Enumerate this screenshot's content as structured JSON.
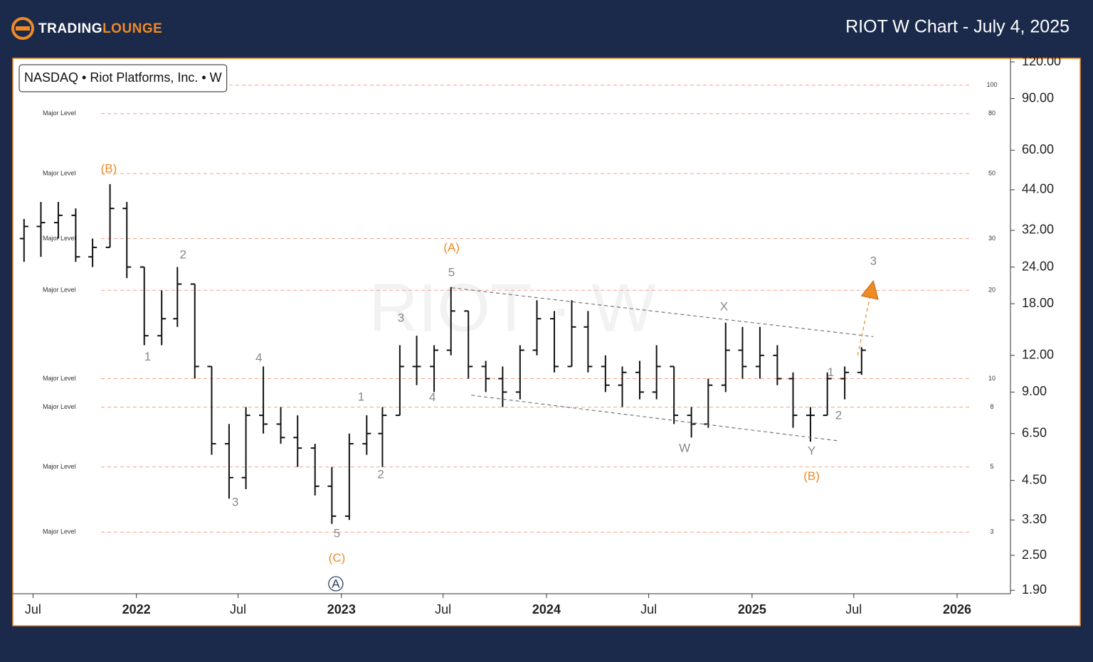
{
  "header": {
    "brand": [
      "TRADING",
      "LOUNGE"
    ],
    "title": "RIOT W Chart - July 4, 2025"
  },
  "chart_data": {
    "type": "ohlc",
    "info": "NASDAQ • Riot Platforms, Inc. • W",
    "watermark": "RIOT · W",
    "log_scale": true,
    "ylim": [
      1.85,
      123.4
    ],
    "yticks": [
      {
        "value": 120,
        "label": "120.00"
      },
      {
        "value": 90,
        "label": "90.00"
      },
      {
        "value": 60,
        "label": "60.00"
      },
      {
        "value": 44,
        "label": "44.00"
      },
      {
        "value": 32,
        "label": "32.00"
      },
      {
        "value": 24,
        "label": "24.00"
      },
      {
        "value": 18,
        "label": "18.00"
      },
      {
        "value": 12,
        "label": "12.00"
      },
      {
        "value": 9,
        "label": "9.00"
      },
      {
        "value": 6.5,
        "label": "6.50"
      },
      {
        "value": 4.5,
        "label": "4.50"
      },
      {
        "value": 3.3,
        "label": "3.30"
      },
      {
        "value": 2.5,
        "label": "2.50"
      },
      {
        "value": 1.9,
        "label": "1.90"
      }
    ],
    "xlim": [
      "2021-05-26",
      "2026-04-06"
    ],
    "xticks": [
      {
        "value": "2021-07",
        "label": "Jul"
      },
      {
        "value": "2022-01",
        "label": "2022"
      },
      {
        "value": "2022-07",
        "label": "Jul"
      },
      {
        "value": "2023-01",
        "label": "2023"
      },
      {
        "value": "2023-07",
        "label": "Jul"
      },
      {
        "value": "2024-01",
        "label": "2024"
      },
      {
        "value": "2024-07",
        "label": "Jul"
      },
      {
        "value": "2025-01",
        "label": "2025"
      },
      {
        "value": "2025-07",
        "label": "Jul"
      },
      {
        "value": "2026-01",
        "label": "2026"
      }
    ],
    "levels": [
      {
        "value": 100
      },
      {
        "value": 80,
        "name": "Major Level"
      },
      {
        "value": 50,
        "name": "Major Level"
      },
      {
        "value": 30,
        "name": "Major Level"
      },
      {
        "value": 20,
        "name": "Major Level"
      },
      {
        "value": 10,
        "name": "Major Level"
      },
      {
        "value": 8,
        "name": "Major Level"
      },
      {
        "value": 5,
        "name": "Major Level"
      },
      {
        "value": 3,
        "name": "Major Level"
      }
    ],
    "level_color": "#f4a08a",
    "color": "#111111",
    "x": [
      "2021-06",
      "2021-07",
      "2021-08",
      "2021-09",
      "2021-10",
      "2021-11",
      "2021-12",
      "2022-01",
      "2022-02",
      "2022-03",
      "2022-04",
      "2022-05",
      "2022-06",
      "2022-07",
      "2022-08",
      "2022-09",
      "2022-10",
      "2022-11",
      "2022-12",
      "2023-01",
      "2023-02",
      "2023-03",
      "2023-04",
      "2023-05",
      "2023-06",
      "2023-07",
      "2023-08",
      "2023-09",
      "2023-10",
      "2023-11",
      "2023-12",
      "2024-01",
      "2024-02",
      "2024-03",
      "2024-04",
      "2024-05",
      "2024-06",
      "2024-07",
      "2024-08",
      "2024-09",
      "2024-10",
      "2024-11",
      "2024-12",
      "2025-01",
      "2025-02",
      "2025-03",
      "2025-04",
      "2025-05",
      "2025-06",
      "2025-07"
    ],
    "open": [
      30,
      33,
      34,
      36,
      26,
      28,
      38,
      24,
      14,
      16,
      21,
      11,
      6,
      4.6,
      7.5,
      7,
      6.3,
      5.8,
      4.3,
      3.4,
      6,
      6.5,
      7.5,
      11,
      11,
      12.5,
      17,
      11,
      10,
      9,
      12.5,
      16,
      11,
      15,
      11,
      9.5,
      10.5,
      9,
      11,
      7.5,
      7,
      9.5,
      12.5,
      11,
      12,
      10,
      7.5,
      7.5,
      10,
      10.5
    ],
    "high": [
      35,
      40,
      40,
      38,
      30,
      46,
      40,
      24,
      20,
      24,
      21,
      11,
      7,
      8,
      11,
      8,
      7.5,
      6,
      5,
      6.5,
      7.5,
      8,
      13,
      14,
      13,
      20.5,
      17,
      11.5,
      11,
      13,
      18.5,
      17,
      18.5,
      17,
      12,
      11,
      11.5,
      13,
      11,
      8,
      10,
      15.5,
      15,
      15,
      13,
      10.5,
      8,
      10.5,
      11,
      12.8
    ],
    "low": [
      25,
      26,
      30,
      25,
      24,
      28,
      22,
      13,
      13,
      15,
      10,
      5.5,
      3.9,
      4.2,
      6.5,
      6,
      5,
      4,
      3.2,
      3.3,
      5.5,
      5,
      7.5,
      9.5,
      9,
      12,
      10,
      9,
      8,
      8.5,
      12,
      10.5,
      11,
      10.5,
      9,
      8,
      8.5,
      8.5,
      7,
      6.3,
      6.8,
      9,
      10,
      10,
      9.5,
      6.8,
      6.1,
      7.5,
      8.5,
      10.3
    ],
    "close": [
      33,
      34,
      36,
      26,
      28,
      38,
      24,
      14,
      16,
      21,
      11,
      6,
      4.6,
      7.5,
      7,
      6.3,
      5.8,
      4.3,
      3.4,
      6,
      6.5,
      7.5,
      11,
      11,
      12.5,
      17,
      11,
      10,
      9,
      12.5,
      16,
      11,
      15,
      11,
      9.5,
      10.5,
      9,
      11,
      7.5,
      7,
      9.5,
      12.5,
      11,
      12,
      10,
      7.5,
      7.5,
      10,
      10.5,
      12.5
    ],
    "annotations": [
      {
        "text": "(B)",
        "x": "2021-11-13",
        "y": 52,
        "color": "#f08a24"
      },
      {
        "text": "1",
        "x": "2022-01-21",
        "y": 11.9,
        "color": "#888888"
      },
      {
        "text": "2",
        "x": "2022-03-25",
        "y": 26.5,
        "color": "#888888"
      },
      {
        "text": "3",
        "x": "2022-06-26",
        "y": 3.8,
        "color": "#888888"
      },
      {
        "text": "4",
        "x": "2022-08-07",
        "y": 11.8,
        "color": "#888888"
      },
      {
        "text": "5",
        "x": "2022-12-24",
        "y": 2.97,
        "color": "#888888"
      },
      {
        "text": "(C)",
        "x": "2022-12-24",
        "y": 2.45,
        "color": "#f08a24"
      },
      {
        "text": "A",
        "x": "2022-12-22",
        "y": 2.0,
        "color": "#2b3a5c",
        "circled": true
      },
      {
        "text": "1",
        "x": "2023-02-05",
        "y": 8.68,
        "color": "#888888"
      },
      {
        "text": "2",
        "x": "2023-03-12",
        "y": 4.72,
        "color": "#888888"
      },
      {
        "text": "3",
        "x": "2023-04-17",
        "y": 16.1,
        "color": "#888888"
      },
      {
        "text": "4",
        "x": "2023-06-12",
        "y": 8.64,
        "color": "#888888"
      },
      {
        "text": "5",
        "x": "2023-07-16",
        "y": 23,
        "color": "#888888"
      },
      {
        "text": "(A)",
        "x": "2023-07-16",
        "y": 28,
        "color": "#f08a24"
      },
      {
        "text": "W",
        "x": "2024-09-03",
        "y": 5.81,
        "color": "#888888"
      },
      {
        "text": "X",
        "x": "2024-11-12",
        "y": 17.6,
        "color": "#888888"
      },
      {
        "text": "Y",
        "x": "2025-04-17",
        "y": 5.67,
        "color": "#888888"
      },
      {
        "text": "(B)",
        "x": "2025-04-17",
        "y": 4.65,
        "color": "#f08a24"
      },
      {
        "text": "1",
        "x": "2025-05-21",
        "y": 10.5,
        "color": "#888888"
      },
      {
        "text": "2",
        "x": "2025-06-04",
        "y": 7.51,
        "color": "#888888"
      },
      {
        "text": "3",
        "x": "2025-08-05",
        "y": 25.2,
        "color": "#888888"
      }
    ],
    "lines": [
      {
        "x1": "2023-07-16",
        "y1": 20.4,
        "x2": "2025-08-05",
        "y2": 13.9,
        "color": "#777777"
      },
      {
        "x1": "2023-08-20",
        "y1": 8.78,
        "x2": "2025-06-03",
        "y2": 6.14,
        "color": "#777777"
      },
      {
        "x1": "2025-07-08",
        "y1": 12,
        "x2": "2025-08-03",
        "y2": 20.7,
        "color": "#f08a24",
        "arrow": true
      }
    ]
  }
}
